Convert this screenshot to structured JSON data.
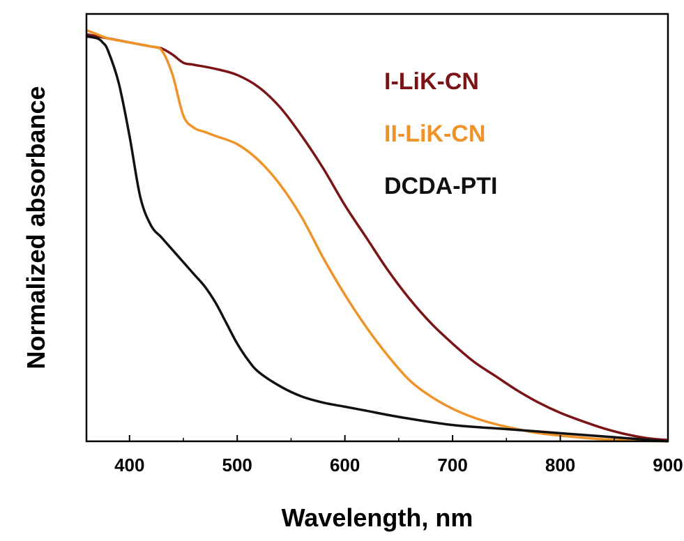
{
  "chart_data": {
    "type": "line",
    "title": "",
    "xlabel": "Wavelength, nm",
    "ylabel": "Normalized absorbance",
    "xlim": [
      360,
      900
    ],
    "ylim": [
      0,
      1.05
    ],
    "x_ticks": [
      400,
      500,
      600,
      700,
      800,
      900
    ],
    "x_tick_labels": [
      "400",
      "500",
      "600",
      "700",
      "800",
      "900"
    ],
    "y_tick_labels_shown": false,
    "grid": false,
    "legend": "top-right",
    "series": [
      {
        "name": "I-LiK-CN",
        "color": "#7b1416",
        "x": [
          360,
          370,
          380,
          400,
          420,
          430,
          440,
          450,
          460,
          480,
          500,
          520,
          540,
          560,
          580,
          600,
          620,
          640,
          660,
          680,
          700,
          720,
          740,
          760,
          780,
          800,
          820,
          840,
          860,
          880,
          900
        ],
        "y": [
          1.0,
          0.995,
          0.99,
          0.98,
          0.97,
          0.965,
          0.95,
          0.93,
          0.925,
          0.915,
          0.9,
          0.87,
          0.82,
          0.75,
          0.67,
          0.58,
          0.5,
          0.42,
          0.35,
          0.29,
          0.24,
          0.195,
          0.16,
          0.125,
          0.095,
          0.07,
          0.05,
          0.032,
          0.018,
          0.008,
          0.003
        ]
      },
      {
        "name": "II-LiK-CN",
        "color": "#ef9328",
        "x": [
          360,
          370,
          380,
          400,
          420,
          430,
          440,
          450,
          460,
          470,
          480,
          500,
          520,
          540,
          560,
          580,
          600,
          620,
          640,
          660,
          680,
          700,
          720,
          740,
          760,
          780,
          800,
          820,
          840,
          860,
          880,
          900
        ],
        "y": [
          1.01,
          1.0,
          0.99,
          0.98,
          0.97,
          0.96,
          0.9,
          0.8,
          0.77,
          0.76,
          0.75,
          0.73,
          0.69,
          0.63,
          0.55,
          0.45,
          0.36,
          0.28,
          0.21,
          0.15,
          0.11,
          0.08,
          0.058,
          0.042,
          0.03,
          0.02,
          0.014,
          0.009,
          0.005,
          0.003,
          0.001,
          0.0
        ]
      },
      {
        "name": "DCDA-PTI",
        "color": "#111111",
        "x": [
          360,
          370,
          375,
          380,
          390,
          400,
          410,
          420,
          430,
          440,
          450,
          460,
          470,
          480,
          490,
          500,
          510,
          520,
          540,
          560,
          580,
          600,
          620,
          650,
          700,
          750,
          800,
          850,
          900
        ],
        "y": [
          0.995,
          0.99,
          0.98,
          0.96,
          0.88,
          0.75,
          0.6,
          0.53,
          0.5,
          0.47,
          0.44,
          0.41,
          0.38,
          0.34,
          0.29,
          0.24,
          0.2,
          0.17,
          0.135,
          0.11,
          0.095,
          0.085,
          0.075,
          0.06,
          0.04,
          0.03,
          0.02,
          0.01,
          0.0
        ]
      }
    ]
  }
}
